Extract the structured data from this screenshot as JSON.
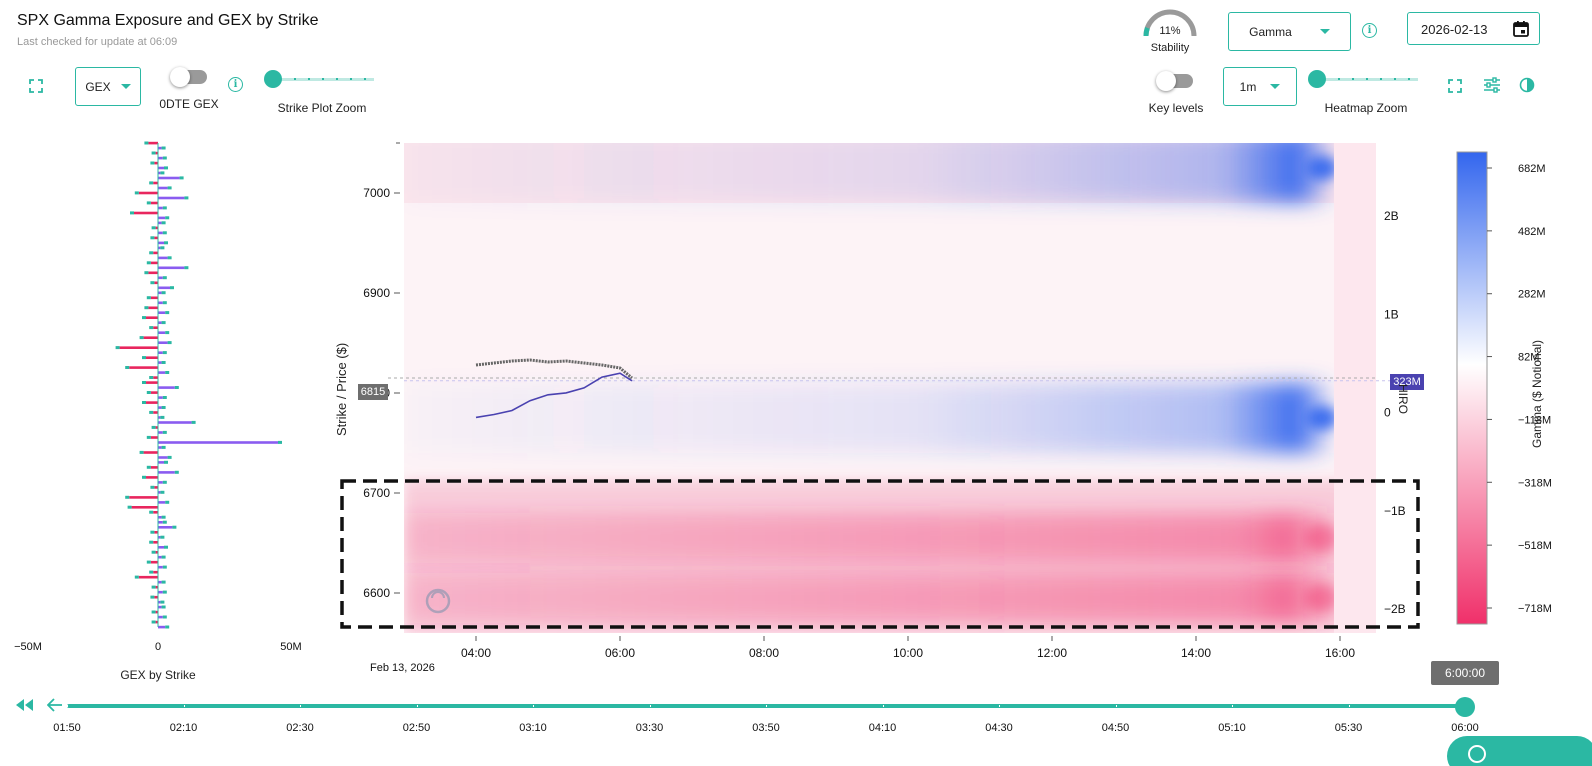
{
  "header": {
    "title": "SPX Gamma Exposure and GEX by Strike",
    "subtitle": "Last checked for update at 06:09",
    "stability_value": "11%",
    "stability_label": "Stability",
    "stability_fraction": 0.11,
    "metric_select": "Gamma",
    "date_value": "2026-02-13"
  },
  "controls": {
    "gex_select": "GEX",
    "odte_label": "0DTE GEX",
    "strike_zoom_label": "Strike Plot Zoom",
    "key_levels_label": "Key levels",
    "interval_select": "1m",
    "heatmap_zoom_label": "Heatmap Zoom"
  },
  "colors": {
    "accent": "#2bb8a3",
    "positive": "#3366ee",
    "negative": "#f0306a",
    "bar_positive": "#8a5cf0",
    "bar_negative": "#e8265e",
    "spot_line": "#4a42b0",
    "price_line": "#666666"
  },
  "icons": {
    "expand_left": "expand-icon",
    "expand_right": "expand-icon",
    "settings": "sliders-icon",
    "contrast": "contrast-icon",
    "calendar": "calendar-icon",
    "rewind": "rewind-icon",
    "back": "arrow-left-icon"
  },
  "chart_data": [
    {
      "type": "bar",
      "orientation": "horizontal",
      "title": "GEX by Strike",
      "xlabel": "GEX by Strike",
      "xlim": [
        -50000000,
        50000000
      ],
      "x_ticks": [
        "−50M",
        "0",
        "50M"
      ],
      "strikes": [
        7045,
        7040,
        7035,
        7030,
        7025,
        7020,
        7015,
        7010,
        7005,
        7000,
        6995,
        6990,
        6985,
        6980,
        6975,
        6970,
        6965,
        6960,
        6955,
        6950,
        6945,
        6940,
        6935,
        6930,
        6925,
        6920,
        6915,
        6910,
        6905,
        6900,
        6895,
        6890,
        6885,
        6880,
        6875,
        6870,
        6865,
        6860,
        6855,
        6850,
        6845,
        6840,
        6835,
        6830,
        6825,
        6820,
        6815,
        6810,
        6805,
        6800,
        6795,
        6790,
        6785,
        6780,
        6775,
        6770,
        6765,
        6760,
        6755,
        6750,
        6745,
        6740,
        6735,
        6730,
        6725,
        6720,
        6715,
        6710,
        6705,
        6700,
        6695,
        6690,
        6685,
        6680,
        6675,
        6670,
        6665,
        6660,
        6655,
        6650,
        6645,
        6640,
        6635,
        6630,
        6625,
        6620,
        6615,
        6610,
        6605,
        6600,
        6595,
        6590,
        6585,
        6580,
        6575,
        6570,
        6565,
        6560
      ],
      "values": [
        -4000000,
        1500000,
        -1000000,
        2000000,
        -1500000,
        2500000,
        1000000,
        9000000,
        -2000000,
        4000000,
        -8000000,
        11000000,
        -3000000,
        2000000,
        -10000000,
        3000000,
        1500000,
        -1000000,
        2000000,
        -1500000,
        2500000,
        1000000,
        -2000000,
        4000000,
        -3000000,
        11000000,
        -4000000,
        2000000,
        -1500000,
        5000000,
        1500000,
        -3000000,
        2000000,
        -4000000,
        3000000,
        -5000000,
        1500000,
        -2000000,
        3000000,
        -6000000,
        4000000,
        -16000000,
        2000000,
        -5000000,
        1500000,
        -12000000,
        3000000,
        -2000000,
        -5000000,
        7000000,
        -3000000,
        2000000,
        -5000000,
        1500000,
        -2000000,
        1000000,
        14000000,
        -1000000,
        2000000,
        -3000000,
        50000000,
        1500000,
        -6000000,
        4000000,
        2500000,
        -3000000,
        7000000,
        -5000000,
        2000000,
        -1500000,
        1000000,
        -12000000,
        3000000,
        -11000000,
        -2000000,
        1500000,
        2000000,
        6000000,
        -1500000,
        1000000,
        -2000000,
        2500000,
        -1000000,
        1500000,
        -3000000,
        2000000,
        -2000000,
        -8000000,
        1500000,
        -1000000,
        2000000,
        -1500000,
        1000000,
        1500000,
        -1000000,
        2000000,
        -1000000,
        3000000
      ]
    },
    {
      "type": "heatmap",
      "x_ticks": [
        "04:00",
        "06:00",
        "08:00",
        "10:00",
        "12:00",
        "14:00",
        "16:00"
      ],
      "x_date_label": "Feb 13, 2026",
      "xlim": [
        "03:00",
        "16:30"
      ],
      "ylabel": "Strike / Price ($)",
      "y_ticks": [
        6600,
        6700,
        6800,
        6900,
        7000
      ],
      "ylim": [
        6560,
        7050
      ],
      "right_axis_ticks": [
        "2B",
        "1B",
        "0",
        "−1B",
        "−2B"
      ],
      "right_axis_values": [
        2000000000,
        1000000000,
        0,
        -1000000000,
        -2000000000
      ],
      "right_axis_range": [
        -2000000000,
        2000000000
      ],
      "spot_price_label": "6815",
      "spot_price": 6815,
      "hiro_label": "323M",
      "hiro_value": 323000000,
      "hiro_axis_label": "HIRO",
      "colorbar": {
        "label": "Gamma ($ Notional)",
        "ticks": [
          "682M",
          "482M",
          "282M",
          "82M",
          "−118M",
          "−318M",
          "−518M",
          "−718M"
        ],
        "range": [
          -718000000,
          682000000
        ]
      },
      "price_series": {
        "times": [
          "04:00",
          "04:15",
          "04:30",
          "04:45",
          "05:00",
          "05:15",
          "05:30",
          "05:45",
          "06:00",
          "06:10"
        ],
        "values": [
          6828,
          6830,
          6832,
          6833,
          6831,
          6832,
          6830,
          6828,
          6825,
          6815
        ]
      },
      "hiro_series": {
        "times": [
          "04:00",
          "04:15",
          "04:30",
          "04:45",
          "05:00",
          "05:15",
          "05:30",
          "05:45",
          "06:00",
          "06:10"
        ],
        "values": [
          -50000000,
          -20000000,
          20000000,
          120000000,
          180000000,
          200000000,
          250000000,
          360000000,
          400000000,
          323000000
        ]
      },
      "gamma_bands": [
        {
          "strike": 7025,
          "gamma": 682000000
        },
        {
          "strike": 6775,
          "gamma": 620000000
        },
        {
          "strike": 6655,
          "gamma": -500000000
        },
        {
          "strike": 6595,
          "gamma": -480000000
        }
      ]
    }
  ],
  "timeline": {
    "current_time": "6:00:00",
    "current_fraction": 1.0,
    "ticks": [
      "01:50",
      "02:10",
      "02:30",
      "02:50",
      "03:10",
      "03:30",
      "03:50",
      "04:10",
      "04:30",
      "04:50",
      "05:10",
      "05:30",
      "06:00"
    ]
  }
}
